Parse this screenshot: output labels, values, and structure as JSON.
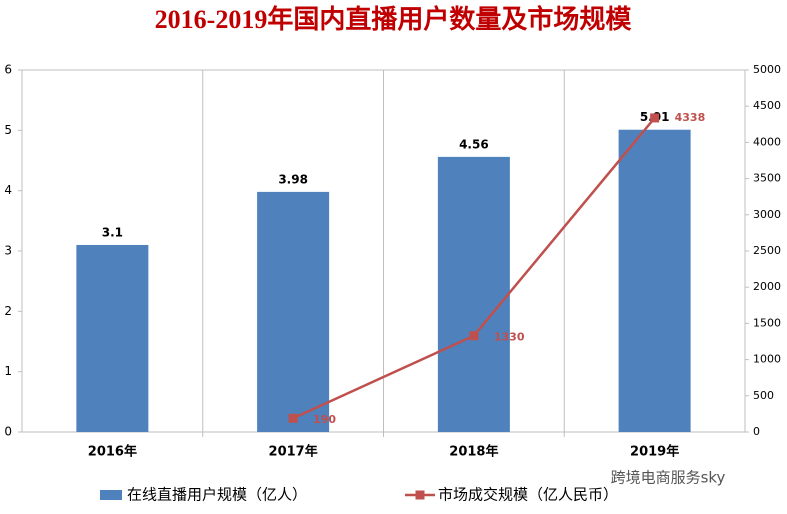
{
  "chart_data": {
    "type": "bar",
    "title": "2016-2019年国内直播用户数量及市场规模",
    "categories": [
      "2016年",
      "2017年",
      "2018年",
      "2019年"
    ],
    "series": [
      {
        "name": "在线直播用户规模（亿人）",
        "color": "#4f81bd",
        "values": [
          3.1,
          3.98,
          4.56,
          5.01
        ]
      },
      {
        "name": "市场成交规模（亿人民币）",
        "type": "line",
        "axis": "y2",
        "color": "#c0504d",
        "values": [
          null,
          190,
          1330,
          4338
        ]
      }
    ],
    "ylim": [
      0,
      6
    ],
    "yticks": [
      0,
      1,
      2,
      3,
      4,
      5,
      6
    ],
    "y2lim": [
      0,
      5000
    ],
    "y2ticks": [
      0,
      500,
      1000,
      1500,
      2000,
      2500,
      3000,
      3500,
      4000,
      4500,
      5000
    ],
    "grid": false,
    "legend": "bottom",
    "watermark": "跨境电商服务sky"
  }
}
